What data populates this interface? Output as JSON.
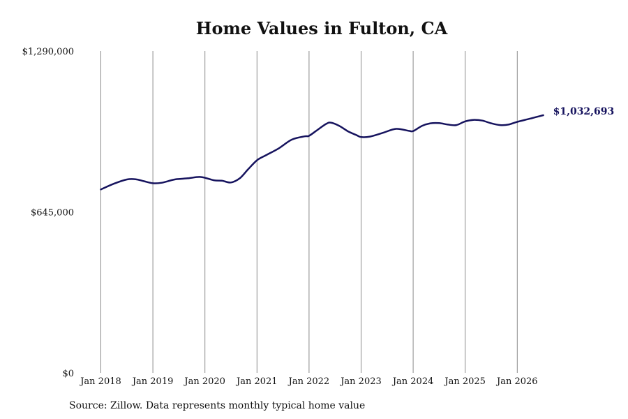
{
  "colors": {
    "line": "#16135e",
    "grid": "#8a8a8a",
    "text": "#111111"
  },
  "chart_data": {
    "type": "line",
    "title": "Home Values in Fulton, CA",
    "xlabel": "",
    "ylabel": "",
    "ylim": [
      0,
      1290000
    ],
    "y_ticks": [
      {
        "value": 0,
        "label": "$0"
      },
      {
        "value": 645000,
        "label": "$645,000"
      },
      {
        "value": 1290000,
        "label": "$1,290,000"
      }
    ],
    "x_ticks": [
      {
        "value": 2018,
        "label": "Jan 2018"
      },
      {
        "value": 2019,
        "label": "Jan 2019"
      },
      {
        "value": 2020,
        "label": "Jan 2020"
      },
      {
        "value": 2021,
        "label": "Jan 2021"
      },
      {
        "value": 2022,
        "label": "Jan 2022"
      },
      {
        "value": 2023,
        "label": "Jan 2023"
      },
      {
        "value": 2024,
        "label": "Jan 2024"
      },
      {
        "value": 2025,
        "label": "Jan 2025"
      },
      {
        "value": 2026,
        "label": "Jan 2026"
      }
    ],
    "grid": "vertical",
    "end_label": "$1,032,693",
    "series": [
      {
        "name": "",
        "points": [
          [
            2018.0,
            735000
          ],
          [
            2018.25,
            758000
          ],
          [
            2018.5,
            775000
          ],
          [
            2018.67,
            776000
          ],
          [
            2018.83,
            768000
          ],
          [
            2019.0,
            760000
          ],
          [
            2019.17,
            762000
          ],
          [
            2019.42,
            775000
          ],
          [
            2019.67,
            780000
          ],
          [
            2019.92,
            785000
          ],
          [
            2020.17,
            772000
          ],
          [
            2020.33,
            770000
          ],
          [
            2020.5,
            763000
          ],
          [
            2020.67,
            780000
          ],
          [
            2020.83,
            816000
          ],
          [
            2021.0,
            852000
          ],
          [
            2021.17,
            872000
          ],
          [
            2021.42,
            900000
          ],
          [
            2021.67,
            935000
          ],
          [
            2021.92,
            948000
          ],
          [
            2022.0,
            950000
          ],
          [
            2022.17,
            975000
          ],
          [
            2022.33,
            998000
          ],
          [
            2022.42,
            1003000
          ],
          [
            2022.58,
            990000
          ],
          [
            2022.75,
            968000
          ],
          [
            2022.92,
            952000
          ],
          [
            2023.0,
            945000
          ],
          [
            2023.17,
            947000
          ],
          [
            2023.42,
            962000
          ],
          [
            2023.67,
            978000
          ],
          [
            2023.92,
            970000
          ],
          [
            2024.0,
            969000
          ],
          [
            2024.17,
            990000
          ],
          [
            2024.33,
            1000000
          ],
          [
            2024.5,
            1001000
          ],
          [
            2024.67,
            995000
          ],
          [
            2024.83,
            993000
          ],
          [
            2025.0,
            1008000
          ],
          [
            2025.17,
            1014000
          ],
          [
            2025.33,
            1011000
          ],
          [
            2025.5,
            1000000
          ],
          [
            2025.67,
            993000
          ],
          [
            2025.83,
            995000
          ],
          [
            2026.0,
            1006000
          ],
          [
            2026.25,
            1019000
          ],
          [
            2026.5,
            1032693
          ]
        ]
      }
    ]
  },
  "footer": {
    "source": "Source: Zillow. Data represents monthly typical home value"
  }
}
